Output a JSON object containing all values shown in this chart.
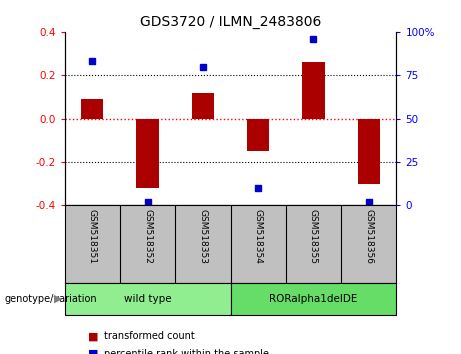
{
  "title": "GDS3720 / ILMN_2483806",
  "samples": [
    "GSM518351",
    "GSM518352",
    "GSM518353",
    "GSM518354",
    "GSM518355",
    "GSM518356"
  ],
  "bar_values": [
    0.09,
    -0.32,
    0.12,
    -0.15,
    0.26,
    -0.3
  ],
  "percentile_values": [
    83,
    2,
    80,
    10,
    96,
    2
  ],
  "bar_color": "#aa0000",
  "dot_color": "#0000cc",
  "ylim_left": [
    -0.4,
    0.4
  ],
  "ylim_right": [
    0,
    100
  ],
  "yticks_left": [
    -0.4,
    -0.2,
    0.0,
    0.2,
    0.4
  ],
  "yticks_right": [
    0,
    25,
    50,
    75,
    100
  ],
  "yticklabels_right": [
    "0",
    "25",
    "50",
    "75",
    "100%"
  ],
  "groups": [
    {
      "label": "wild type",
      "indices": [
        0,
        1,
        2
      ],
      "color": "#90ee90"
    },
    {
      "label": "RORalpha1delDE",
      "indices": [
        3,
        4,
        5
      ],
      "color": "#66dd66"
    }
  ],
  "genotype_label": "genotype/variation",
  "legend_bar_label": "transformed count",
  "legend_dot_label": "percentile rank within the sample",
  "background_color": "#ffffff",
  "plot_bg_color": "#ffffff",
  "tick_label_area_color": "#c0c0c0",
  "bar_width": 0.4,
  "title_fontsize": 10,
  "tick_fontsize": 7.5,
  "label_fontsize": 7.5
}
